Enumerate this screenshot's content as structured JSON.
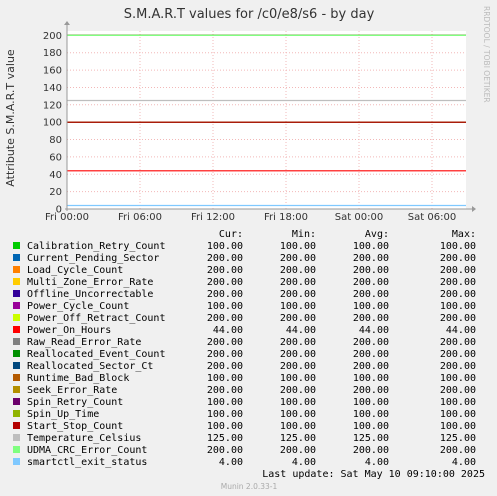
{
  "chart_data": {
    "type": "line",
    "title": "S.M.A.R.T values for /c0/e8/s6 - by day",
    "ylabel": "Attribute S.M.A.R.T value",
    "side_label": "RRDTOOL / TOBI OETIKER",
    "ylim": [
      0,
      205
    ],
    "yticks": [
      0,
      20,
      40,
      60,
      80,
      100,
      120,
      140,
      160,
      180,
      200
    ],
    "x_ticks": [
      "Fri 00:00",
      "Fri 06:00",
      "Fri 12:00",
      "Fri 18:00",
      "Sat 00:00",
      "Sat 06:00"
    ],
    "grid": true,
    "columns": [
      "Cur:",
      "Min:",
      "Avg:",
      "Max:"
    ],
    "series": [
      {
        "name": "Calibration_Retry_Count",
        "color": "#00cc00",
        "cur": "100.00",
        "min": "100.00",
        "avg": "100.00",
        "max": "100.00",
        "value": 100
      },
      {
        "name": "Current_Pending_Sector",
        "color": "#0066b3",
        "cur": "200.00",
        "min": "200.00",
        "avg": "200.00",
        "max": "200.00",
        "value": 200
      },
      {
        "name": "Load_Cycle_Count",
        "color": "#ff8000",
        "cur": "200.00",
        "min": "200.00",
        "avg": "200.00",
        "max": "200.00",
        "value": 200
      },
      {
        "name": "Multi_Zone_Error_Rate",
        "color": "#ffcc00",
        "cur": "200.00",
        "min": "200.00",
        "avg": "200.00",
        "max": "200.00",
        "value": 200
      },
      {
        "name": "Offline_Uncorrectable",
        "color": "#330099",
        "cur": "200.00",
        "min": "200.00",
        "avg": "200.00",
        "max": "200.00",
        "value": 200
      },
      {
        "name": "Power_Cycle_Count",
        "color": "#990099",
        "cur": "100.00",
        "min": "100.00",
        "avg": "100.00",
        "max": "100.00",
        "value": 100
      },
      {
        "name": "Power_Off_Retract_Count",
        "color": "#ccff00",
        "cur": "200.00",
        "min": "200.00",
        "avg": "200.00",
        "max": "200.00",
        "value": 200
      },
      {
        "name": "Power_On_Hours",
        "color": "#ff0000",
        "cur": "44.00",
        "min": "44.00",
        "avg": "44.00",
        "max": "44.00",
        "value": 44
      },
      {
        "name": "Raw_Read_Error_Rate",
        "color": "#808080",
        "cur": "200.00",
        "min": "200.00",
        "avg": "200.00",
        "max": "200.00",
        "value": 200
      },
      {
        "name": "Reallocated_Event_Count",
        "color": "#008f00",
        "cur": "200.00",
        "min": "200.00",
        "avg": "200.00",
        "max": "200.00",
        "value": 200
      },
      {
        "name": "Reallocated_Sector_Ct",
        "color": "#00487d",
        "cur": "200.00",
        "min": "200.00",
        "avg": "200.00",
        "max": "200.00",
        "value": 200
      },
      {
        "name": "Runtime_Bad_Block",
        "color": "#b35a00",
        "cur": "100.00",
        "min": "100.00",
        "avg": "100.00",
        "max": "100.00",
        "value": 100
      },
      {
        "name": "Seek_Error_Rate",
        "color": "#b38f00",
        "cur": "200.00",
        "min": "200.00",
        "avg": "200.00",
        "max": "200.00",
        "value": 200
      },
      {
        "name": "Spin_Retry_Count",
        "color": "#6b006b",
        "cur": "100.00",
        "min": "100.00",
        "avg": "100.00",
        "max": "100.00",
        "value": 100
      },
      {
        "name": "Spin_Up_Time",
        "color": "#8fb300",
        "cur": "100.00",
        "min": "100.00",
        "avg": "100.00",
        "max": "100.00",
        "value": 100
      },
      {
        "name": "Start_Stop_Count",
        "color": "#b30000",
        "cur": "100.00",
        "min": "100.00",
        "avg": "100.00",
        "max": "100.00",
        "value": 100
      },
      {
        "name": "Temperature_Celsius",
        "color": "#bebebe",
        "cur": "125.00",
        "min": "125.00",
        "avg": "125.00",
        "max": "125.00",
        "value": 125
      },
      {
        "name": "UDMA_CRC_Error_Count",
        "color": "#80ff80",
        "cur": "200.00",
        "min": "200.00",
        "avg": "200.00",
        "max": "200.00",
        "value": 200
      },
      {
        "name": "smartctl_exit_status",
        "color": "#80c9ff",
        "cur": "4.00",
        "min": "4.00",
        "avg": "4.00",
        "max": "4.00",
        "value": 4
      }
    ],
    "last_update": "Last update:  Sat May 10 09:10:00 2025",
    "footer": "Munin 2.0.33-1"
  }
}
